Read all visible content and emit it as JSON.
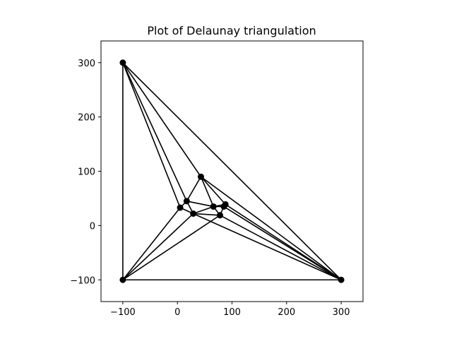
{
  "chart_data": {
    "type": "scatter",
    "title": "Plot of Delaunay triangulation",
    "xlabel": "",
    "ylabel": "",
    "xlim": [
      -140,
      340
    ],
    "ylim": [
      -140,
      340
    ],
    "x_ticks": [
      -100,
      0,
      100,
      200,
      300
    ],
    "y_ticks": [
      -100,
      0,
      100,
      200,
      300
    ],
    "x_tick_labels": [
      "−100",
      "0",
      "100",
      "200",
      "300"
    ],
    "y_tick_labels": [
      "−100",
      "0",
      "100",
      "200",
      "300"
    ],
    "grid": false,
    "legend": "none",
    "colors": {
      "edges": "#000000",
      "points": "#000000"
    },
    "points": [
      {
        "x": -100,
        "y": 300
      },
      {
        "x": -100,
        "y": -100
      },
      {
        "x": 300,
        "y": -100
      },
      {
        "x": 43,
        "y": 90
      },
      {
        "x": 17,
        "y": 45
      },
      {
        "x": 5,
        "y": 33
      },
      {
        "x": 29,
        "y": 22
      },
      {
        "x": 66,
        "y": 35
      },
      {
        "x": 88,
        "y": 39
      },
      {
        "x": 85,
        "y": 35
      },
      {
        "x": 78,
        "y": 19
      }
    ],
    "edges": [
      [
        0,
        1
      ],
      [
        1,
        2
      ],
      [
        0,
        2
      ],
      [
        0,
        3
      ],
      [
        0,
        4
      ],
      [
        0,
        5
      ],
      [
        3,
        2
      ],
      [
        8,
        2
      ],
      [
        9,
        2
      ],
      [
        10,
        2
      ],
      [
        6,
        2
      ],
      [
        1,
        5
      ],
      [
        1,
        6
      ],
      [
        1,
        10
      ],
      [
        3,
        4
      ],
      [
        3,
        7
      ],
      [
        3,
        8
      ],
      [
        4,
        5
      ],
      [
        4,
        6
      ],
      [
        4,
        7
      ],
      [
        5,
        6
      ],
      [
        6,
        7
      ],
      [
        6,
        10
      ],
      [
        7,
        8
      ],
      [
        7,
        9
      ],
      [
        7,
        10
      ],
      [
        8,
        9
      ],
      [
        9,
        10
      ]
    ]
  }
}
